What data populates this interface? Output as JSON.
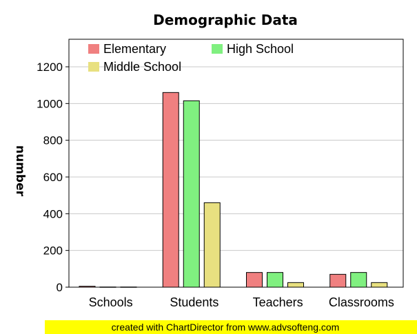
{
  "chart_data": {
    "type": "bar",
    "title": "Demographic Data",
    "xlabel": "",
    "ylabel": "number",
    "ylim": [
      0,
      1350
    ],
    "yticks": [
      0,
      200,
      400,
      600,
      800,
      1000,
      1200
    ],
    "grid": true,
    "legend_position": "top-left",
    "categories": [
      "Schools",
      "Students",
      "Teachers",
      "Classrooms"
    ],
    "series": [
      {
        "name": "Elementary",
        "color": "#f08080",
        "values": [
          5,
          1060,
          80,
          70
        ]
      },
      {
        "name": "High School",
        "color": "#80f080",
        "values": [
          1,
          1015,
          80,
          80
        ]
      },
      {
        "name": "Middle School",
        "color": "#e8e080",
        "values": [
          1,
          460,
          25,
          25
        ]
      }
    ]
  },
  "footer": {
    "text": "created with ChartDirector from www.advsofteng.com",
    "background": "#ffff00"
  }
}
